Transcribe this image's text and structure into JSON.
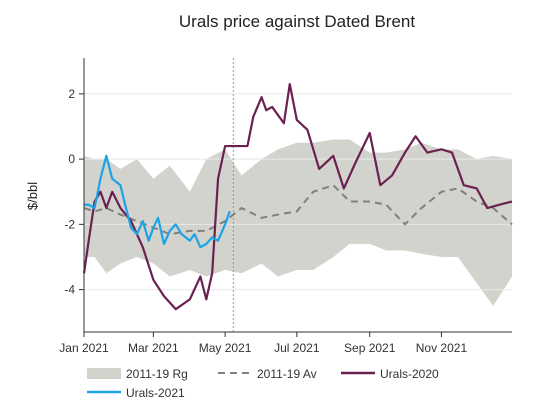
{
  "chart_data": {
    "type": "line",
    "title": "Urals price against Dated Brent",
    "ylabel": "$/bbl",
    "xlabel": "",
    "ylim": [
      -5.3,
      3.1
    ],
    "xlim": [
      "2021-01-01",
      "2021-12-31"
    ],
    "yticks": [
      -4,
      -2,
      0,
      2
    ],
    "xticks": [
      {
        "date": "2021-01-01",
        "label": "Jan 2021"
      },
      {
        "date": "2021-03-01",
        "label": "Mar 2021"
      },
      {
        "date": "2021-05-01",
        "label": "May 2021"
      },
      {
        "date": "2021-07-01",
        "label": "Jul 2021"
      },
      {
        "date": "2021-09-01",
        "label": "Sep 2021"
      },
      {
        "date": "2021-11-01",
        "label": "Nov 2021"
      }
    ],
    "vline": "2021-05-08",
    "colors": {
      "range": "#d3d3cd",
      "avg": "#808080",
      "u2020": "#6b2150",
      "u2021": "#1aa3e8"
    },
    "range_band": {
      "name": "2011-19 Rg",
      "x": [
        "2021-01-01",
        "2021-01-10",
        "2021-01-20",
        "2021-02-01",
        "2021-02-15",
        "2021-03-01",
        "2021-03-15",
        "2021-04-01",
        "2021-04-15",
        "2021-05-01",
        "2021-05-15",
        "2021-06-01",
        "2021-06-15",
        "2021-07-01",
        "2021-07-15",
        "2021-08-01",
        "2021-08-15",
        "2021-09-01",
        "2021-09-15",
        "2021-10-01",
        "2021-10-15",
        "2021-11-01",
        "2021-11-15",
        "2021-12-01",
        "2021-12-15",
        "2021-12-31"
      ],
      "upper": [
        0.1,
        0.0,
        0.0,
        -0.3,
        0.0,
        -0.6,
        -0.2,
        -1.0,
        0.0,
        0.3,
        -0.5,
        0.0,
        0.3,
        0.5,
        0.5,
        0.6,
        0.6,
        0.2,
        0.2,
        0.3,
        0.5,
        0.3,
        0.3,
        0.0,
        0.1,
        0.0
      ],
      "lower": [
        -3.0,
        -3.0,
        -3.5,
        -3.2,
        -3.0,
        -3.2,
        -3.6,
        -3.4,
        -3.6,
        -3.4,
        -3.5,
        -3.2,
        -3.6,
        -3.4,
        -3.4,
        -3.0,
        -2.6,
        -2.6,
        -2.8,
        -2.8,
        -2.9,
        -3.0,
        -3.0,
        -3.8,
        -4.5,
        -3.6
      ]
    },
    "series": [
      {
        "name": "2011-19 Av",
        "key": "avg",
        "x": [
          "2021-01-01",
          "2021-01-10",
          "2021-01-20",
          "2021-02-01",
          "2021-02-15",
          "2021-03-01",
          "2021-03-15",
          "2021-04-01",
          "2021-04-15",
          "2021-05-01",
          "2021-05-15",
          "2021-06-01",
          "2021-06-15",
          "2021-07-01",
          "2021-07-15",
          "2021-08-01",
          "2021-08-15",
          "2021-09-01",
          "2021-09-15",
          "2021-10-01",
          "2021-10-15",
          "2021-11-01",
          "2021-11-15",
          "2021-12-01",
          "2021-12-15",
          "2021-12-31"
        ],
        "values": [
          -1.5,
          -1.6,
          -1.5,
          -1.7,
          -1.9,
          -2.1,
          -2.3,
          -2.2,
          -2.2,
          -1.9,
          -1.5,
          -1.8,
          -1.7,
          -1.6,
          -1.0,
          -0.8,
          -1.3,
          -1.3,
          -1.4,
          -2.0,
          -1.5,
          -1.0,
          -0.9,
          -1.3,
          -1.5,
          -2.0
        ]
      },
      {
        "name": "Urals-2020",
        "key": "u2020",
        "x": [
          "2021-01-01",
          "2021-01-05",
          "2021-01-10",
          "2021-01-15",
          "2021-01-20",
          "2021-01-25",
          "2021-02-01",
          "2021-02-10",
          "2021-02-20",
          "2021-03-01",
          "2021-03-10",
          "2021-03-20",
          "2021-04-01",
          "2021-04-10",
          "2021-04-15",
          "2021-04-20",
          "2021-04-25",
          "2021-05-01",
          "2021-05-10",
          "2021-05-15",
          "2021-05-20",
          "2021-05-25",
          "2021-06-01",
          "2021-06-05",
          "2021-06-10",
          "2021-06-20",
          "2021-06-25",
          "2021-07-01",
          "2021-07-10",
          "2021-07-20",
          "2021-08-01",
          "2021-08-10",
          "2021-08-20",
          "2021-09-01",
          "2021-09-10",
          "2021-09-20",
          "2021-10-01",
          "2021-10-10",
          "2021-10-20",
          "2021-11-01",
          "2021-11-10",
          "2021-11-20",
          "2021-12-01",
          "2021-12-10",
          "2021-12-20",
          "2021-12-31"
        ],
        "values": [
          -3.5,
          -2.5,
          -1.3,
          -1.0,
          -1.5,
          -1.0,
          -1.5,
          -1.9,
          -2.7,
          -3.7,
          -4.2,
          -4.6,
          -4.3,
          -3.6,
          -4.3,
          -3.5,
          -0.6,
          0.4,
          0.4,
          0.4,
          0.4,
          1.3,
          1.9,
          1.5,
          1.6,
          1.1,
          2.3,
          1.2,
          0.9,
          -0.3,
          0.1,
          -0.9,
          -0.1,
          0.8,
          -0.8,
          -0.5,
          0.2,
          0.7,
          0.2,
          0.3,
          0.2,
          -0.8,
          -0.9,
          -1.5,
          -1.4,
          -1.3
        ]
      },
      {
        "name": "Urals-2021",
        "key": "u2021",
        "x": [
          "2021-01-01",
          "2021-01-05",
          "2021-01-10",
          "2021-01-15",
          "2021-01-20",
          "2021-01-25",
          "2021-02-01",
          "2021-02-05",
          "2021-02-10",
          "2021-02-15",
          "2021-02-20",
          "2021-02-25",
          "2021-03-01",
          "2021-03-05",
          "2021-03-10",
          "2021-03-15",
          "2021-03-20",
          "2021-03-25",
          "2021-04-01",
          "2021-04-05",
          "2021-04-10",
          "2021-04-15",
          "2021-04-20",
          "2021-04-25",
          "2021-05-01",
          "2021-05-05"
        ],
        "values": [
          -1.4,
          -1.4,
          -1.5,
          -0.6,
          0.1,
          -0.6,
          -0.8,
          -1.4,
          -2.1,
          -2.3,
          -1.9,
          -2.5,
          -2.1,
          -1.8,
          -2.6,
          -2.2,
          -2.0,
          -2.3,
          -2.5,
          -2.3,
          -2.7,
          -2.6,
          -2.4,
          -2.5,
          -2.0,
          -1.6
        ]
      }
    ],
    "legend": {
      "placement": "bottom",
      "items": [
        {
          "label": "2011-19 Rg",
          "key": "range"
        },
        {
          "label": "2011-19 Av",
          "key": "avg"
        },
        {
          "label": "Urals-2020",
          "key": "u2020"
        },
        {
          "label": "Urals-2021",
          "key": "u2021"
        }
      ]
    }
  }
}
